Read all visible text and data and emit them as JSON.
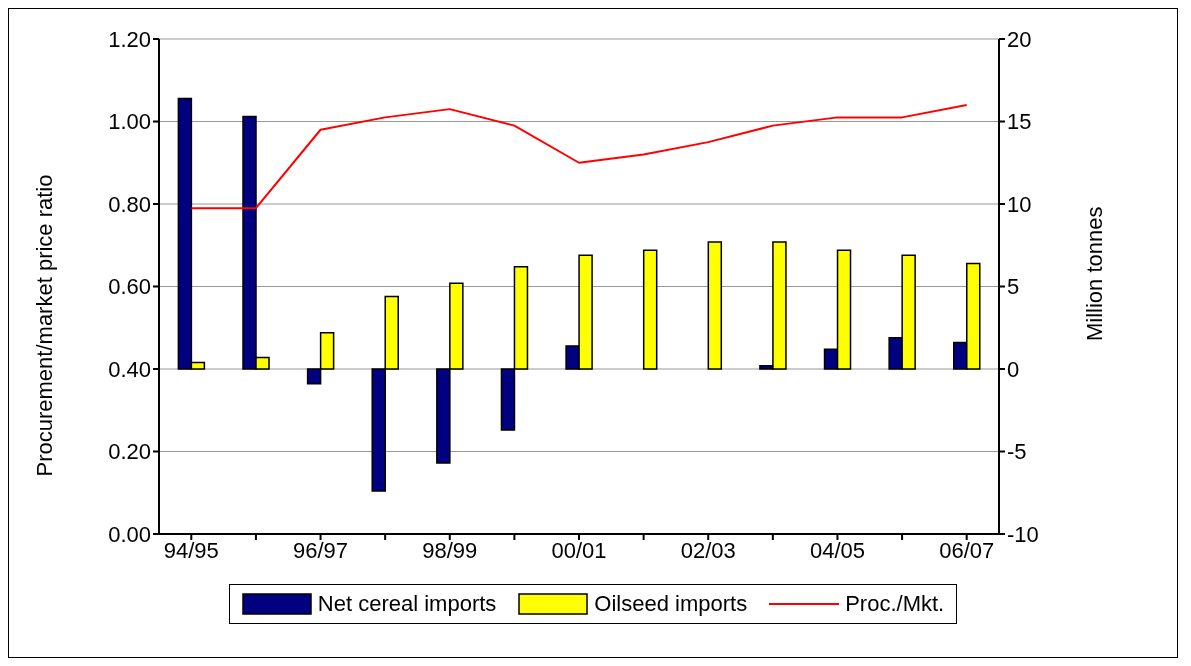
{
  "chart_data": {
    "type": "bar",
    "ylabel": "Procurement/market price ratio",
    "y2label": "Million tonnes",
    "categories": [
      "94/95",
      null,
      "96/97",
      null,
      "98/99",
      null,
      "00/01",
      null,
      "02/03",
      null,
      "04/05",
      null,
      "06/07"
    ],
    "series": [
      {
        "name": "Net cereal imports",
        "axis": "y2",
        "color": "#000080",
        "values": [
          16.4,
          15.3,
          -0.9,
          -7.4,
          -5.7,
          -3.7,
          1.4,
          0,
          0,
          0.2,
          1.2,
          1.9,
          1.6
        ]
      },
      {
        "name": "Oilseed imports",
        "axis": "y2",
        "color": "#ffff00",
        "values": [
          0.4,
          0.7,
          2.2,
          4.4,
          5.2,
          6.2,
          6.9,
          7.2,
          7.7,
          7.7,
          7.2,
          6.9,
          6.4
        ]
      },
      {
        "name": "Proc./Mkt.",
        "type": "line",
        "axis": "y",
        "color": "#ff0000",
        "values": [
          0.79,
          0.79,
          0.98,
          1.01,
          1.03,
          0.99,
          0.9,
          0.92,
          0.95,
          0.99,
          1.01,
          1.01,
          1.04
        ]
      }
    ],
    "ylim": [
      0,
      1.2
    ],
    "yticks": [
      {
        "value": 0,
        "label": "0.00"
      },
      {
        "value": 0.2,
        "label": "0.20"
      },
      {
        "value": 0.4,
        "label": "0.40"
      },
      {
        "value": 0.6,
        "label": "0.60"
      },
      {
        "value": 0.8,
        "label": "0.80"
      },
      {
        "value": 1,
        "label": "1.00"
      },
      {
        "value": 1.2,
        "label": "1.20"
      }
    ],
    "y2lim": [
      -10,
      20
    ],
    "y2ticks": [
      -10,
      -5,
      0,
      5,
      10,
      15,
      20
    ],
    "grid": "y",
    "legend": "bottom",
    "marker": "none",
    "line_style": "solid"
  }
}
